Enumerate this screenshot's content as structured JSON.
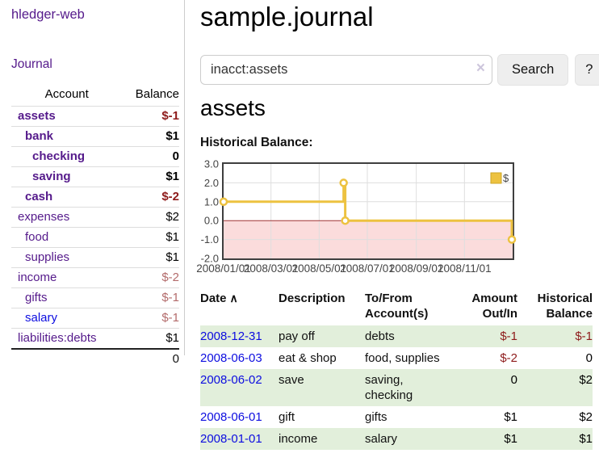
{
  "colors": {
    "link_purple": "#551A8B",
    "link_blue": "#0d0de0",
    "neg_dark": "#8e1b1b",
    "neg_rose": "#b36b6b",
    "row_green": "#e2efdb",
    "row_line": "#dddddd",
    "divider": "#cccccc",
    "chart_line": "#edc240",
    "chart_legendborder": "#cda626",
    "chart_fill": "#fbdcdc",
    "chart_zero": "#a03333",
    "chart_grid": "#dedede",
    "chart_border": "#3f3f3f"
  },
  "sidebar": {
    "app_title": "hledger-web",
    "nav_journal": "Journal",
    "table": {
      "col_account": "Account",
      "col_balance": "Balance",
      "rows": [
        {
          "label": "assets",
          "balance": "$-1",
          "depth": 0,
          "row_class": "bold",
          "link_class": "purple",
          "balance_class": "neg-dark"
        },
        {
          "label": "bank",
          "balance": "$1",
          "depth": 1,
          "row_class": "bold",
          "link_class": "purple",
          "balance_class": "pos"
        },
        {
          "label": "checking",
          "balance": "0",
          "depth": 2,
          "row_class": "bold",
          "link_class": "purple",
          "balance_class": "pos"
        },
        {
          "label": "saving",
          "balance": "$1",
          "depth": 2,
          "row_class": "bold",
          "link_class": "purple",
          "balance_class": "pos"
        },
        {
          "label": "cash",
          "balance": "$-2",
          "depth": 1,
          "row_class": "bold",
          "link_class": "purple",
          "balance_class": "neg-dark"
        },
        {
          "label": "expenses",
          "balance": "$2",
          "depth": 0,
          "row_class": "",
          "link_class": "purple",
          "balance_class": "pos"
        },
        {
          "label": "food",
          "balance": "$1",
          "depth": 1,
          "row_class": "",
          "link_class": "purple",
          "balance_class": "pos"
        },
        {
          "label": "supplies",
          "balance": "$1",
          "depth": 1,
          "row_class": "",
          "link_class": "purple",
          "balance_class": "pos"
        },
        {
          "label": "income",
          "balance": "$-2",
          "depth": 0,
          "row_class": "",
          "link_class": "purple",
          "balance_class": "neg-rose"
        },
        {
          "label": "gifts",
          "balance": "$-1",
          "depth": 1,
          "row_class": "",
          "link_class": "purple",
          "balance_class": "neg-rose"
        },
        {
          "label": "salary",
          "balance": "$-1",
          "depth": 1,
          "row_class": "",
          "link_class": "blue",
          "balance_class": "neg-rose"
        },
        {
          "label": "liabilities:debts",
          "balance": "$1",
          "depth": 0,
          "row_class": "",
          "link_class": "purple",
          "balance_class": "pos"
        }
      ],
      "total": "0"
    }
  },
  "header": {
    "title": "sample.journal"
  },
  "search": {
    "value": "inacct:assets",
    "clear_icon": "×",
    "button_label": "Search",
    "help_label": "?"
  },
  "account_page": {
    "heading": "assets",
    "chart_label": "Historical Balance:"
  },
  "chart_data": {
    "type": "line",
    "style": "step",
    "title": "Historical Balance",
    "series": [
      {
        "name": "$",
        "points": [
          [
            "2008-01-01",
            1
          ],
          [
            "2008-06-01",
            2
          ],
          [
            "2008-06-03",
            0
          ],
          [
            "2008-12-31",
            -1
          ]
        ]
      }
    ],
    "x_ticks": [
      "2008/01/01",
      "2008/03/01",
      "2008/05/01",
      "2008/07/01",
      "2008/09/01",
      "2008/11/01"
    ],
    "y_ticks": [
      3.0,
      2.0,
      1.0,
      0.0,
      -1.0,
      -2.0
    ],
    "x_range": [
      "2008-01-01",
      "2009-01-01"
    ],
    "y_range": [
      -2,
      3
    ],
    "grid": true,
    "legend": {
      "label": "$",
      "position": "top-right"
    },
    "marking_below_zero": true
  },
  "register": {
    "columns": [
      {
        "label": "Date"
      },
      {
        "label": "Description"
      },
      {
        "label": "To/From Account(s)"
      },
      {
        "label": "Amount Out/In"
      },
      {
        "label": "Historical Balance"
      }
    ],
    "sort_icon": "∧",
    "rows": [
      {
        "date": "2008-12-31",
        "description": "pay off",
        "accounts": "debts",
        "amount": "$-1",
        "amount_class": "neg-dark",
        "balance": "$-1",
        "balance_class": "neg-dark",
        "shade": "green"
      },
      {
        "date": "2008-06-03",
        "description": "eat & shop",
        "accounts": "food, supplies",
        "amount": "$-2",
        "amount_class": "neg-dark",
        "balance": "0",
        "balance_class": "pos",
        "shade": "white"
      },
      {
        "date": "2008-06-02",
        "description": "save",
        "accounts": "saving, checking",
        "amount": "0",
        "amount_class": "pos",
        "balance": "$2",
        "balance_class": "pos",
        "shade": "green"
      },
      {
        "date": "2008-06-01",
        "description": "gift",
        "accounts": "gifts",
        "amount": "$1",
        "amount_class": "pos",
        "balance": "$2",
        "balance_class": "pos",
        "shade": "white"
      },
      {
        "date": "2008-01-01",
        "description": "income",
        "accounts": "salary",
        "amount": "$1",
        "amount_class": "pos",
        "balance": "$1",
        "balance_class": "pos",
        "shade": "green"
      }
    ]
  }
}
